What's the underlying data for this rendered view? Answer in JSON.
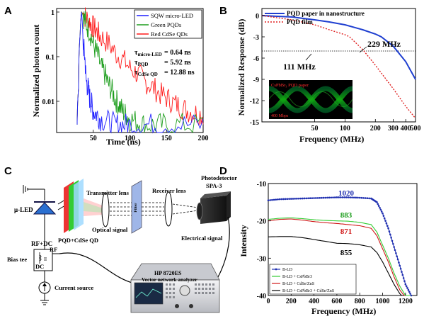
{
  "figure": {
    "panel_labels": [
      "A",
      "B",
      "C",
      "D"
    ]
  },
  "panel_a": {
    "ylabel": "Normalized photon count",
    "xlabel": "Time (ns)",
    "xticks": [
      "50",
      "100",
      "150",
      "200"
    ],
    "yticks": [
      "1",
      "0.1",
      "0.01"
    ],
    "legend": [
      "SQW micro-LED",
      "Green PQDs",
      "Red CdSe QDs"
    ],
    "colors": {
      "blue": "#1f1fff",
      "green": "#1e9e1e",
      "red": "#ff1a1a"
    },
    "tau": [
      {
        "label": "τ",
        "sub": "micro-LED",
        "value": "= 0.64 ns"
      },
      {
        "label": "τ",
        "sub": "PQD",
        "value": "= 5.92 ns"
      },
      {
        "label": "τ",
        "sub": "CdSe QD",
        "value": "= 12.88 ns"
      }
    ]
  },
  "panel_b": {
    "ylabel": "Normalized Response (dB)",
    "xlabel": "Frequency (MHz)",
    "xticks": [
      "50",
      "100",
      "200",
      "300",
      "400",
      "500"
    ],
    "yticks": [
      "0",
      "-3",
      "-6",
      "-9",
      "-12",
      "-15"
    ],
    "legend": [
      "PQD paper in nanostructure",
      "PQD film"
    ],
    "annotations": [
      "229 MHz",
      "111 MHz"
    ],
    "inset_title": "CsPbBr₃ PQD paper",
    "inset_rate": "400 Mbps"
  },
  "panel_c": {
    "labels": {
      "led": "μ-LED",
      "qd": "PQD+CdSe QD",
      "tx_lens": "Transmitter lens",
      "filter": "Filter",
      "rx_lens": "Receiver lens",
      "photodetector": "Photodetector",
      "pd_model": "SPA-3",
      "optical": "Optical signal",
      "electrical": "Electrical signal",
      "rfdc": "RF+DC",
      "rf": "RF",
      "dc": "DC",
      "bias": "Bias tee",
      "current": "Current source",
      "vna_model": "HP 8720ES",
      "vna_name": "Vector network analyzer"
    }
  },
  "panel_d": {
    "ylabel": "Intensity",
    "xlabel": "Frequency (MHz)",
    "xticks": [
      "0",
      "200",
      "400",
      "600",
      "800",
      "1000",
      "1200"
    ],
    "yticks": [
      "-10",
      "-20",
      "-30",
      "-40"
    ],
    "legend": [
      "B-LD",
      "B-LD + CsPbBr3",
      "B-LD + CdSe/ZnS",
      "B-LD + CsPbBr3 + CdSe/ZnS"
    ],
    "values": [
      "1020",
      "883",
      "871",
      "855"
    ]
  },
  "chart_data": [
    {
      "type": "line",
      "panel": "A",
      "xlabel": "Time (ns)",
      "ylabel": "Normalized photon count",
      "xlim": [
        0,
        200
      ],
      "ylim": [
        0.002,
        1.2
      ],
      "yscale": "log",
      "series": [
        {
          "name": "SQW micro-LED",
          "x": [
            28,
            30,
            32,
            34,
            36,
            40,
            45,
            50,
            60,
            80,
            100,
            140,
            200
          ],
          "values": [
            0.003,
            0.02,
            0.3,
            1.0,
            0.2,
            0.03,
            0.012,
            0.006,
            0.004,
            0.003,
            0.003,
            0.003,
            0.003
          ]
        },
        {
          "name": "Green PQDs",
          "x": [
            28,
            30,
            32,
            34,
            40,
            50,
            60,
            70,
            80,
            90,
            100,
            120,
            150,
            200
          ],
          "values": [
            0.003,
            0.02,
            0.3,
            1.0,
            0.55,
            0.18,
            0.06,
            0.025,
            0.011,
            0.006,
            0.004,
            0.003,
            0.003,
            0.003
          ]
        },
        {
          "name": "Red CdSe QDs",
          "x": [
            28,
            30,
            32,
            34,
            40,
            50,
            60,
            80,
            100,
            120,
            140,
            160,
            180,
            200
          ],
          "values": [
            0.003,
            0.02,
            0.3,
            1.0,
            0.75,
            0.45,
            0.28,
            0.12,
            0.055,
            0.028,
            0.015,
            0.009,
            0.006,
            0.005
          ]
        }
      ]
    },
    {
      "type": "line",
      "panel": "B",
      "xlabel": "Frequency (MHz)",
      "ylabel": "Normalized Response (dB)",
      "xscale": "log",
      "xlim": [
        15,
        500
      ],
      "ylim": [
        -15,
        1
      ],
      "series": [
        {
          "name": "PQD paper in nanostructure",
          "x": [
            15,
            30,
            50,
            70,
            100,
            150,
            200,
            229,
            300,
            400,
            500
          ],
          "values": [
            0,
            -0.2,
            -0.6,
            -0.9,
            -1.3,
            -2.0,
            -2.6,
            -3.0,
            -4.3,
            -6.5,
            -9.0
          ]
        },
        {
          "name": "PQD film",
          "x": [
            15,
            30,
            50,
            70,
            100,
            111,
            150,
            200,
            300,
            400,
            500
          ],
          "values": [
            0,
            -0.6,
            -1.3,
            -2.0,
            -2.7,
            -3.0,
            -4.8,
            -7.0,
            -10.3,
            -12.8,
            -14.5
          ]
        }
      ]
    },
    {
      "type": "line",
      "panel": "D",
      "xlabel": "Frequency (MHz)",
      "ylabel": "Intensity",
      "xlim": [
        0,
        1300
      ],
      "ylim": [
        -40,
        -10
      ],
      "series": [
        {
          "name": "B-LD",
          "x": [
            0,
            100,
            200,
            300,
            400,
            500,
            600,
            700,
            800,
            900,
            950,
            1000,
            1050,
            1100,
            1150,
            1200,
            1250
          ],
          "values": [
            -14.5,
            -14.2,
            -14.1,
            -14.0,
            -13.9,
            -13.8,
            -13.7,
            -13.7,
            -13.8,
            -14.0,
            -15.0,
            -18.0,
            -22.0,
            -27.0,
            -32.0,
            -37.0,
            -40.0
          ]
        },
        {
          "name": "B-LD + CsPbBr3",
          "x": [
            0,
            100,
            200,
            300,
            400,
            500,
            600,
            700,
            800,
            900,
            950,
            1000,
            1050,
            1100,
            1150,
            1200,
            1250
          ],
          "values": [
            -19.6,
            -19.3,
            -19.2,
            -19.4,
            -19.7,
            -19.9,
            -20.0,
            -20.1,
            -20.4,
            -21.0,
            -23.0,
            -26.5,
            -30.0,
            -34.0,
            -37.5,
            -40.0,
            -41.0
          ]
        },
        {
          "name": "B-LD + CdSe/ZnS",
          "x": [
            0,
            100,
            200,
            300,
            400,
            500,
            600,
            700,
            800,
            900,
            950,
            1000,
            1050,
            1100,
            1150,
            1200,
            1250
          ],
          "values": [
            -20.0,
            -19.6,
            -19.5,
            -19.8,
            -20.2,
            -20.5,
            -20.7,
            -21.0,
            -21.3,
            -22.0,
            -24.0,
            -27.5,
            -31.0,
            -35.0,
            -38.5,
            -40.5,
            -41.0
          ]
        },
        {
          "name": "B-LD + CsPbBr3 + CdSe/ZnS",
          "x": [
            0,
            100,
            200,
            300,
            400,
            500,
            600,
            700,
            800,
            900,
            950,
            1000,
            1050,
            1100,
            1150,
            1200,
            1250
          ],
          "values": [
            -24.3,
            -24.2,
            -24.2,
            -24.5,
            -25.0,
            -25.5,
            -26.0,
            -26.1,
            -26.4,
            -27.0,
            -28.5,
            -31.0,
            -34.0,
            -37.0,
            -39.5,
            -41.0,
            -41.0
          ]
        }
      ]
    }
  ]
}
